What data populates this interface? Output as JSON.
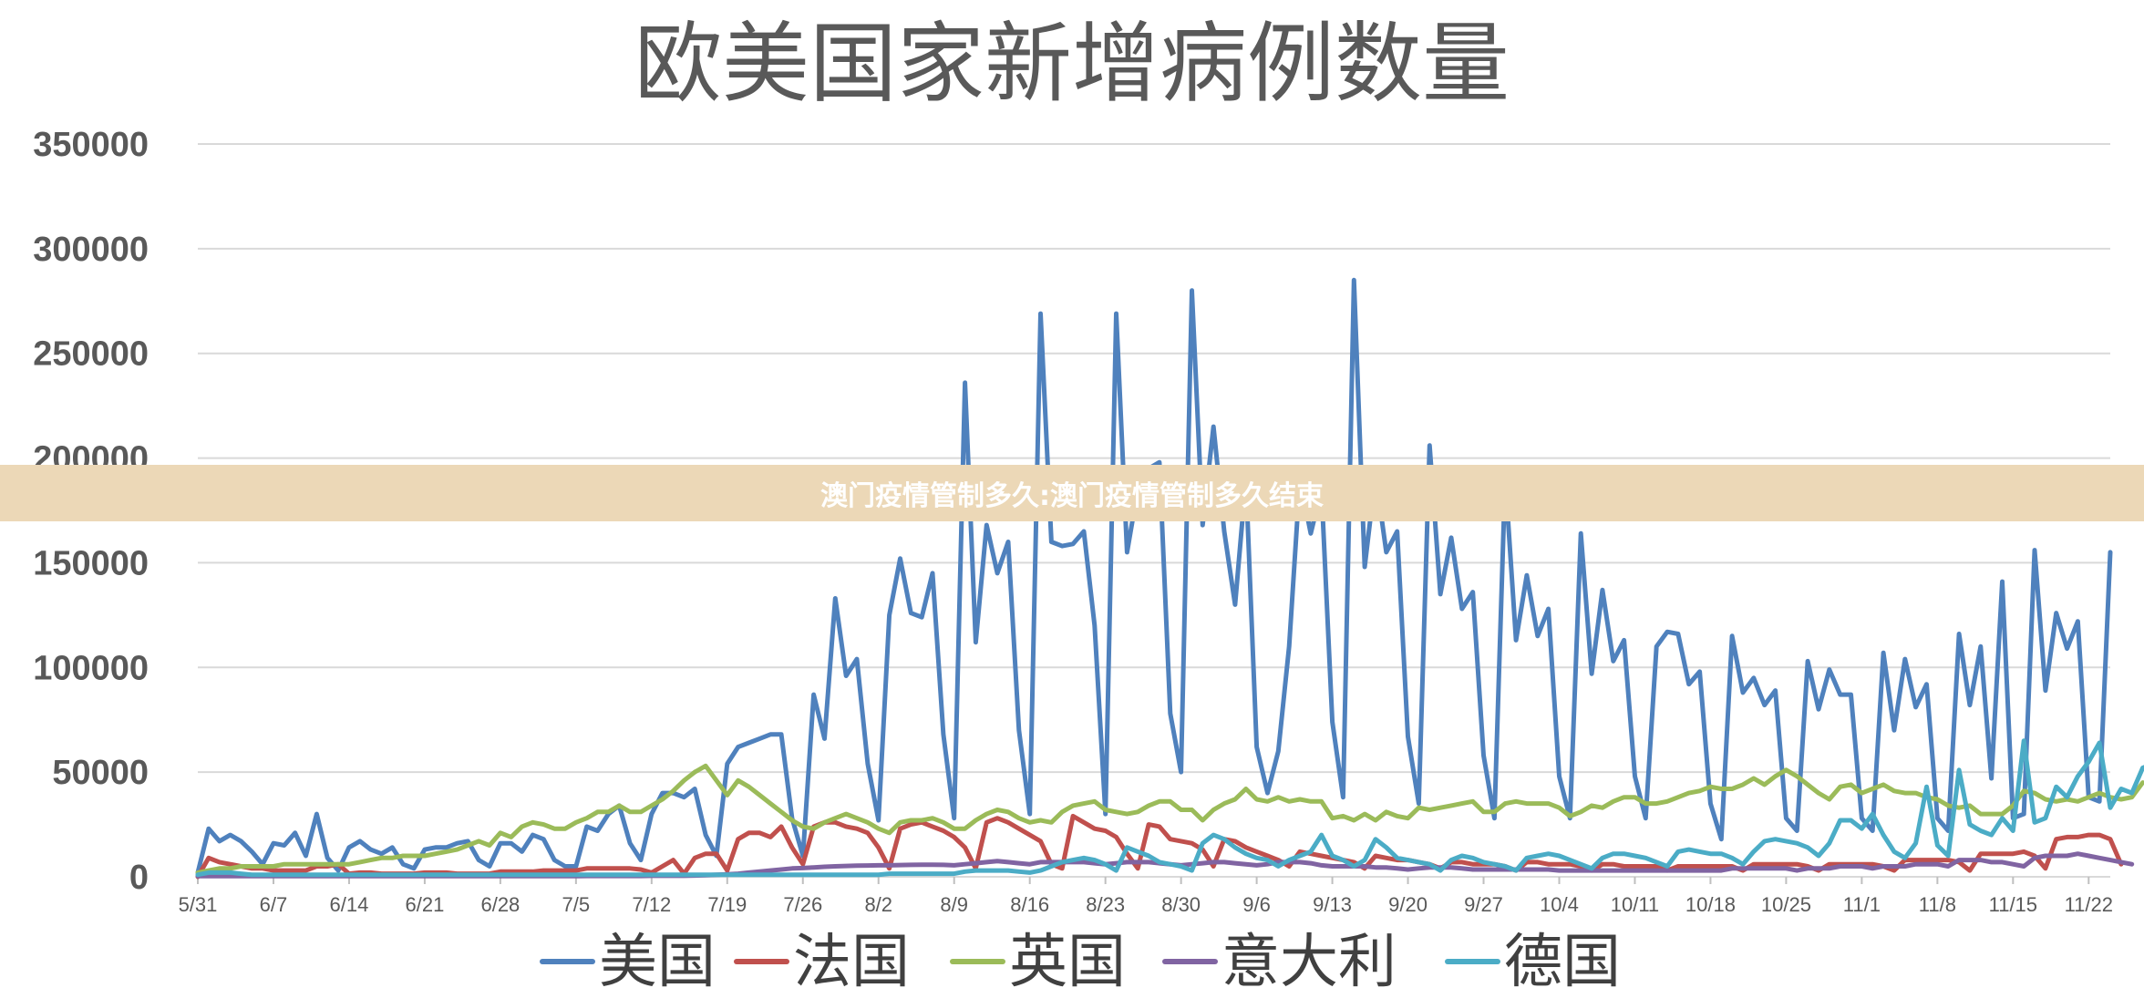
{
  "banner": {
    "text": "澳门疫情管制多久:澳门疫情管制多久结束"
  },
  "chart_data": {
    "type": "line",
    "title": "欧美国家新增病例数量",
    "xlabel": "",
    "ylabel": "",
    "ylim": [
      0,
      350000
    ],
    "yticks": [
      0,
      50000,
      100000,
      150000,
      200000,
      250000,
      300000,
      350000
    ],
    "grid": "horizontal",
    "legend": "bottom",
    "x_start": "5/31",
    "xticks": [
      "5/31",
      "6/7",
      "6/14",
      "6/21",
      "6/28",
      "7/5",
      "7/12",
      "7/19",
      "7/26",
      "8/2",
      "8/9",
      "8/16",
      "8/23",
      "8/30",
      "9/6",
      "9/13",
      "9/20",
      "9/27",
      "10/4",
      "10/11",
      "10/18",
      "10/25",
      "11/1",
      "11/8",
      "11/15",
      "11/22"
    ],
    "series": [
      {
        "name": "美国",
        "color": "#4f81bd",
        "values": [
          2000,
          23000,
          17000,
          20000,
          17000,
          12000,
          6000,
          16000,
          15000,
          21000,
          10000,
          30000,
          9000,
          3000,
          14000,
          17000,
          13000,
          11000,
          14000,
          6000,
          4000,
          13000,
          14000,
          14000,
          16000,
          17000,
          8000,
          5000,
          16000,
          16000,
          12000,
          20000,
          18000,
          8000,
          5000,
          5000,
          24000,
          22000,
          30000,
          34000,
          16000,
          8000,
          30000,
          40000,
          40000,
          38000,
          42000,
          20000,
          10000,
          54000,
          62000,
          64000,
          66000,
          68000,
          68000,
          28000,
          10000,
          87000,
          66000,
          133000,
          96000,
          104000,
          54000,
          27000,
          125000,
          152000,
          126000,
          124000,
          145000,
          68000,
          28000,
          236000,
          112000,
          168000,
          145000,
          160000,
          70000,
          30000,
          269000,
          160000,
          158000,
          159000,
          165000,
          120000,
          30000,
          269000,
          155000,
          185000,
          195000,
          198000,
          78000,
          50000,
          280000,
          168000,
          215000,
          165000,
          130000,
          190000,
          62000,
          40000,
          60000,
          110000,
          190000,
          164000,
          185000,
          74000,
          38000,
          285000,
          148000,
          192000,
          155000,
          165000,
          67000,
          35000,
          206000,
          135000,
          162000,
          128000,
          136000,
          58000,
          28000,
          191000,
          113000,
          144000,
          115000,
          128000,
          48000,
          28000,
          164000,
          97000,
          137000,
          103000,
          113000,
          48000,
          28000,
          110000,
          117000,
          116000,
          92000,
          98000,
          35000,
          18000,
          115000,
          88000,
          95000,
          82000,
          89000,
          28000,
          22000,
          103000,
          80000,
          99000,
          87000,
          87000,
          28000,
          22000,
          107000,
          70000,
          104000,
          81000,
          92000,
          28000,
          22000,
          116000,
          82000,
          110000,
          47000,
          141000,
          28000,
          30000,
          156000,
          89000,
          126000,
          109000,
          122000,
          38000,
          36000,
          155000
        ]
      },
      {
        "name": "法国",
        "color": "#c0504d",
        "values": [
          0,
          9000,
          7000,
          6000,
          5000,
          4000,
          4000,
          3000,
          3000,
          3000,
          3000,
          5000,
          5000,
          6000,
          1500,
          2000,
          2000,
          1500,
          1500,
          1500,
          1500,
          2000,
          2000,
          2000,
          1500,
          1500,
          1500,
          1500,
          2500,
          2500,
          2500,
          2500,
          3000,
          3000,
          3000,
          3000,
          4000,
          4000,
          4000,
          4000,
          4000,
          3500,
          2000,
          5000,
          8000,
          1500,
          9000,
          11000,
          11000,
          3000,
          18000,
          21000,
          21000,
          19000,
          24000,
          14000,
          6000,
          24000,
          26000,
          26000,
          24000,
          23000,
          21000,
          14000,
          4000,
          23000,
          25000,
          26000,
          24000,
          22000,
          19000,
          14000,
          4000,
          26000,
          28000,
          26000,
          23000,
          20000,
          17000,
          6000,
          4000,
          29000,
          26000,
          23000,
          22000,
          19000,
          11000,
          4000,
          25000,
          24000,
          18000,
          17000,
          16000,
          13000,
          5000,
          18000,
          17000,
          14000,
          12000,
          10000,
          8000,
          5000,
          12000,
          11000,
          10000,
          9000,
          8000,
          7000,
          4000,
          10000,
          9000,
          8000,
          8000,
          7000,
          6000,
          4000,
          7000,
          7000,
          6000,
          6000,
          6000,
          5000,
          3000,
          7000,
          7000,
          6000,
          6000,
          6000,
          5000,
          3000,
          6000,
          6000,
          5000,
          5000,
          5000,
          5000,
          3000,
          5000,
          5000,
          5000,
          5000,
          5000,
          5000,
          3000,
          6000,
          6000,
          6000,
          6000,
          6000,
          5000,
          3000,
          6000,
          6000,
          6000,
          6000,
          6000,
          5000,
          3000,
          8000,
          8000,
          8000,
          8000,
          8000,
          7000,
          3000,
          11000,
          11000,
          11000,
          11000,
          12000,
          10000,
          4000,
          18000,
          19000,
          19000,
          20000,
          20000,
          18000,
          6000
        ]
      },
      {
        "name": "英国",
        "color": "#9bbb59",
        "values": [
          2000,
          3000,
          4000,
          4000,
          5000,
          5000,
          5000,
          5000,
          6000,
          6000,
          6000,
          6000,
          6000,
          6000,
          6000,
          7000,
          8000,
          9000,
          9000,
          10000,
          10000,
          10000,
          11000,
          12000,
          13000,
          15000,
          17000,
          15000,
          21000,
          19000,
          24000,
          26000,
          25000,
          23000,
          23000,
          26000,
          28000,
          31000,
          31000,
          34000,
          31000,
          31000,
          34000,
          37000,
          41000,
          46000,
          50000,
          53000,
          46000,
          39000,
          46000,
          43000,
          39000,
          35000,
          31000,
          27000,
          24000,
          23000,
          26000,
          28000,
          30000,
          28000,
          26000,
          23000,
          21000,
          26000,
          27000,
          27000,
          28000,
          26000,
          23000,
          23000,
          27000,
          30000,
          32000,
          31000,
          28000,
          26000,
          27000,
          26000,
          31000,
          34000,
          35000,
          36000,
          32000,
          31000,
          30000,
          31000,
          34000,
          36000,
          36000,
          32000,
          32000,
          27000,
          32000,
          35000,
          37000,
          42000,
          37000,
          36000,
          38000,
          36000,
          37000,
          36000,
          36000,
          28000,
          29000,
          27000,
          30000,
          27000,
          31000,
          29000,
          28000,
          33000,
          32000,
          33000,
          34000,
          35000,
          36000,
          31000,
          31000,
          35000,
          36000,
          35000,
          35000,
          35000,
          33000,
          29000,
          31000,
          34000,
          33000,
          36000,
          38000,
          38000,
          35000,
          35000,
          36000,
          38000,
          40000,
          41000,
          43000,
          42000,
          42000,
          44000,
          47000,
          44000,
          48000,
          51000,
          48000,
          44000,
          40000,
          37000,
          43000,
          44000,
          40000,
          42000,
          44000,
          41000,
          40000,
          40000,
          38000,
          37000,
          34000,
          33000,
          34000,
          30000,
          30000,
          30000,
          34000,
          41000,
          40000,
          37000,
          36000,
          37000,
          36000,
          38000,
          40000,
          38000,
          37000,
          38000,
          45000
        ]
      },
      {
        "name": "意大利",
        "color": "#8064a2",
        "values": [
          300,
          300,
          300,
          300,
          300,
          300,
          300,
          300,
          300,
          300,
          300,
          300,
          300,
          300,
          300,
          300,
          300,
          300,
          300,
          300,
          300,
          300,
          300,
          300,
          300,
          300,
          300,
          300,
          300,
          300,
          300,
          300,
          300,
          300,
          300,
          300,
          400,
          400,
          400,
          400,
          400,
          400,
          500,
          500,
          500,
          500,
          600,
          800,
          1000,
          1200,
          1500,
          2000,
          2500,
          3000,
          3500,
          4000,
          4200,
          4500,
          4800,
          5000,
          5200,
          5300,
          5400,
          5500,
          5500,
          5600,
          5700,
          5800,
          5800,
          5700,
          5500,
          6000,
          6500,
          7000,
          7500,
          7000,
          6500,
          6000,
          7000,
          7000,
          7000,
          7000,
          7000,
          6500,
          6000,
          6500,
          7000,
          7000,
          7000,
          6500,
          6000,
          5500,
          6000,
          6500,
          7000,
          7000,
          6500,
          6000,
          5500,
          6000,
          7000,
          7000,
          7000,
          6500,
          5500,
          5000,
          5000,
          5000,
          5000,
          4500,
          4500,
          4000,
          3500,
          4000,
          4500,
          4500,
          4500,
          4000,
          3500,
          3500,
          3500,
          3500,
          3500,
          3500,
          3500,
          3500,
          3000,
          3000,
          3000,
          3000,
          3000,
          3000,
          3000,
          3000,
          3000,
          3000,
          3000,
          3000,
          3000,
          3000,
          3000,
          3000,
          4000,
          4000,
          4000,
          4000,
          4000,
          4000,
          3000,
          4000,
          4000,
          4000,
          5000,
          5000,
          5000,
          4000,
          5000,
          5000,
          5000,
          6000,
          6000,
          6000,
          5000,
          8000,
          8000,
          8000,
          7000,
          7000,
          6000,
          5000,
          9000,
          10000,
          10000,
          10000,
          11000,
          10000,
          9000,
          8000,
          7000,
          6000
        ]
      },
      {
        "name": "德国",
        "color": "#4bacc6",
        "values": [
          1000,
          2000,
          2000,
          2000,
          1500,
          1000,
          1000,
          1000,
          1000,
          1000,
          1000,
          1000,
          1000,
          1000,
          1000,
          1000,
          1000,
          1000,
          1000,
          1000,
          1000,
          1000,
          1000,
          1000,
          1000,
          1000,
          1000,
          1000,
          1000,
          1000,
          1000,
          1000,
          1000,
          1000,
          1000,
          1000,
          1000,
          1000,
          1000,
          1000,
          1000,
          1000,
          1000,
          1000,
          1000,
          1000,
          1000,
          1000,
          1000,
          1000,
          1000,
          1000,
          1000,
          1000,
          1000,
          1000,
          1000,
          1000,
          1000,
          1000,
          1000,
          1000,
          1000,
          1000,
          1500,
          1500,
          1500,
          1500,
          1500,
          1500,
          1500,
          2500,
          3000,
          3000,
          3000,
          3000,
          2500,
          2000,
          3000,
          5000,
          7000,
          8000,
          9000,
          8000,
          6000,
          3000,
          14000,
          12000,
          10000,
          7000,
          6000,
          5000,
          3000,
          16000,
          20000,
          18000,
          14000,
          11000,
          9000,
          8000,
          5000,
          8000,
          10000,
          12000,
          20000,
          10000,
          8000,
          5000,
          8000,
          18000,
          14000,
          9000,
          8000,
          7000,
          6000,
          3000,
          8000,
          10000,
          9000,
          7000,
          6000,
          5000,
          3000,
          9000,
          10000,
          11000,
          10000,
          8000,
          6000,
          4000,
          9000,
          11000,
          11000,
          10000,
          9000,
          7000,
          5000,
          12000,
          13000,
          12000,
          11000,
          11000,
          9000,
          6000,
          12000,
          17000,
          18000,
          17000,
          16000,
          14000,
          10000,
          16000,
          27000,
          27000,
          23000,
          30000,
          20000,
          12000,
          9000,
          16000,
          43000,
          15000,
          10000,
          51000,
          25000,
          22000,
          20000,
          28000,
          22000,
          65000,
          26000,
          28000,
          43000,
          38000,
          48000,
          55000,
          64000,
          33000,
          42000,
          40000,
          52000,
          54000
        ]
      }
    ]
  }
}
